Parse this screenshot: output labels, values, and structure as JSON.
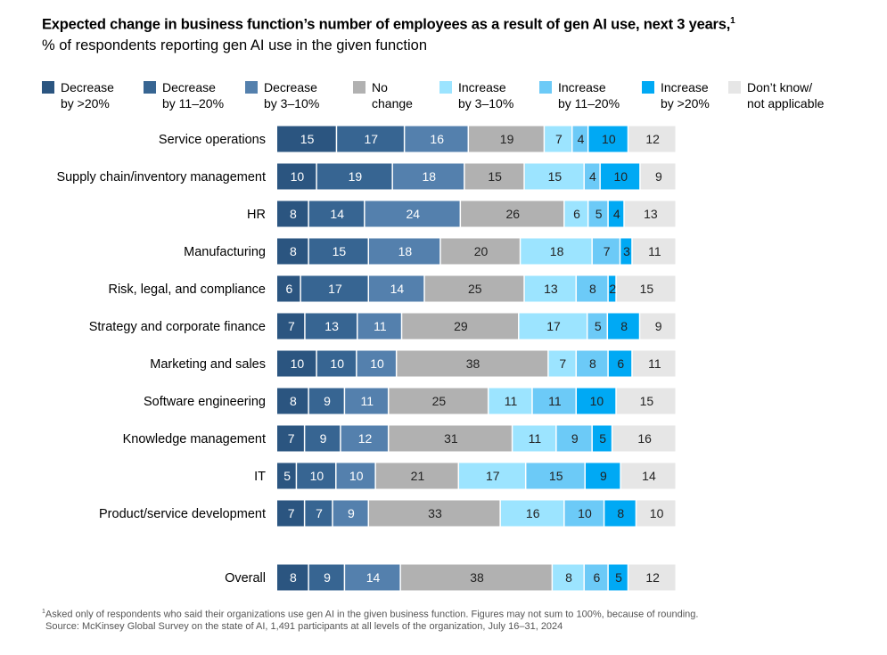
{
  "title": "Expected change in business function’s number of employees as a result of gen AI use, next 3 years,",
  "title_footnote_marker": "1",
  "subtitle": "% of respondents reporting gen AI use in the given function",
  "footnote_marker": "1",
  "footnote": "Asked only of respondents who said their organizations use gen AI in the given business function. Figures may not sum to 100%, because of rounding.",
  "source": "Source: McKinsey Global Survey on the state of AI, 1,491 participants at all levels of the organization, July 16–31, 2024",
  "chart_data": {
    "type": "bar",
    "orientation": "horizontal",
    "stacked": true,
    "legend_position": "top",
    "grid": false,
    "series": [
      {
        "name": "Decrease by >20%",
        "label_line1": "Decrease",
        "label_line2": "by >20%",
        "color": "#2b5580",
        "text_color": "#ffffff"
      },
      {
        "name": "Decrease by 11–20%",
        "label_line1": "Decrease",
        "label_line2": "by 11–20%",
        "color": "#376592",
        "text_color": "#ffffff"
      },
      {
        "name": "Decrease by 3–10%",
        "label_line1": "Decrease",
        "label_line2": "by 3–10%",
        "color": "#5480ad",
        "text_color": "#ffffff"
      },
      {
        "name": "No change",
        "label_line1": "No",
        "label_line2": "change",
        "color": "#b1b1b1",
        "text_color": "#222222"
      },
      {
        "name": "Increase by 3–10%",
        "label_line1": "Increase",
        "label_line2": "by 3–10%",
        "color": "#9ce4ff",
        "text_color": "#222222"
      },
      {
        "name": "Increase by 11–20%",
        "label_line1": "Increase",
        "label_line2": "by 11–20%",
        "color": "#6ccaf7",
        "text_color": "#222222"
      },
      {
        "name": "Increase by >20%",
        "label_line1": "Increase",
        "label_line2": "by >20%",
        "color": "#00a9f4",
        "text_color": "#222222"
      },
      {
        "name": "Don’t know/not applicable",
        "label_line1": "Don’t know/",
        "label_line2": "not applicable",
        "color": "#e6e6e6",
        "text_color": "#222222"
      }
    ],
    "categories": [
      "Service operations",
      "Supply chain/inventory management",
      "HR",
      "Manufacturing",
      "Risk, legal, and compliance",
      "Strategy and corporate finance",
      "Marketing and sales",
      "Software engineering",
      "Knowledge management",
      "IT",
      "Product/service development",
      "Overall"
    ],
    "values": [
      [
        15,
        17,
        16,
        19,
        7,
        4,
        10,
        12
      ],
      [
        10,
        19,
        18,
        15,
        15,
        4,
        10,
        9
      ],
      [
        8,
        14,
        24,
        26,
        6,
        5,
        4,
        13
      ],
      [
        8,
        15,
        18,
        20,
        18,
        7,
        3,
        11
      ],
      [
        6,
        17,
        14,
        25,
        13,
        8,
        2,
        15
      ],
      [
        7,
        13,
        11,
        29,
        17,
        5,
        8,
        9
      ],
      [
        10,
        10,
        10,
        38,
        7,
        8,
        6,
        11
      ],
      [
        8,
        9,
        11,
        25,
        11,
        11,
        10,
        15
      ],
      [
        7,
        9,
        12,
        31,
        11,
        9,
        5,
        16
      ],
      [
        5,
        10,
        10,
        21,
        17,
        15,
        9,
        14
      ],
      [
        7,
        7,
        9,
        33,
        16,
        10,
        8,
        10
      ],
      [
        8,
        9,
        14,
        38,
        8,
        6,
        5,
        12
      ]
    ]
  }
}
